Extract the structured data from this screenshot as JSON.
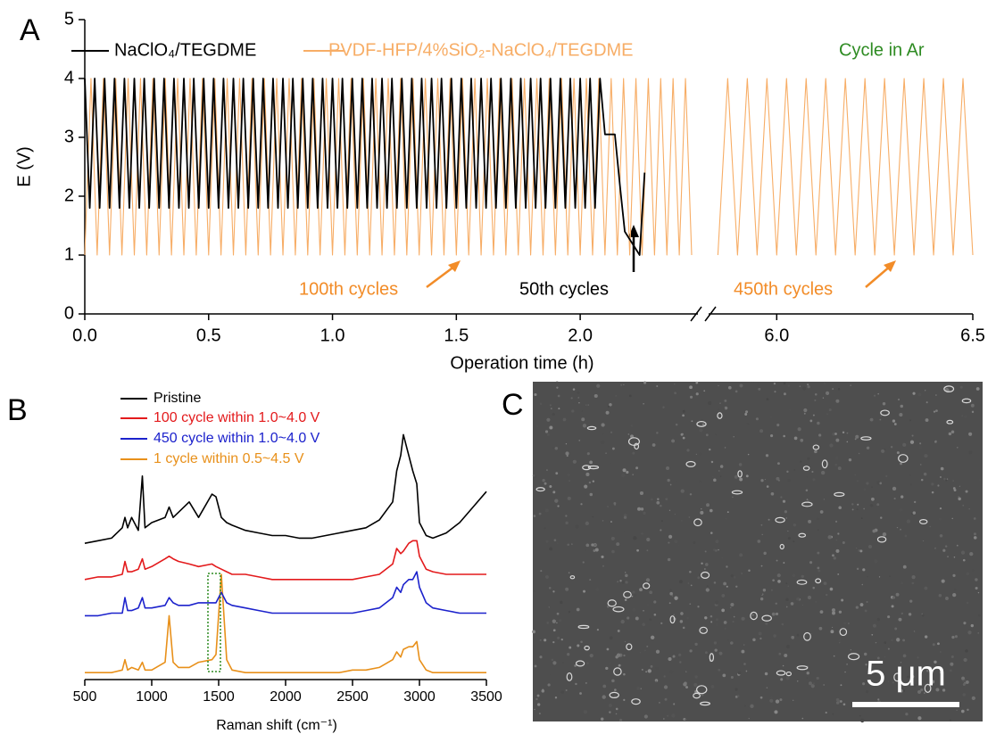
{
  "panels": {
    "labels": [
      "A",
      "B",
      "C"
    ]
  },
  "image": {
    "scale_bar": "5 μm"
  },
  "chart_data": [
    {
      "type": "line",
      "xlabel": "Operation time (h)",
      "ylabel": "E (V)",
      "xlim": [
        0,
        6.5
      ],
      "xbreak": [
        2.45,
        5.84
      ],
      "ylim": [
        0,
        5
      ],
      "xticks": [
        {
          "value": 0,
          "label": "0.0"
        },
        0.5,
        {
          "value": 1,
          "label": "1.0"
        },
        1.5,
        {
          "value": 2,
          "label": "2.0"
        },
        {
          "value": 6,
          "label": "6.0"
        },
        6.5
      ],
      "yticks": [
        0,
        1,
        2,
        3,
        4,
        5
      ],
      "annotations": [
        {
          "text": "Cycle in Ar",
          "color": "#2e8b22"
        },
        {
          "text": "100th cycles",
          "color": "#f28c28"
        },
        {
          "text": "50th cycles",
          "color": "#000000"
        },
        {
          "text": "450th cycles",
          "color": "#f28c28"
        }
      ],
      "series": [
        {
          "name": "NaClO₄/TEGDME",
          "color": "#000000",
          "x": [
            0,
            0.02,
            0.04,
            0.06,
            0.08,
            0.1,
            0.12,
            0.14,
            0.16,
            0.18,
            0.2,
            0.22,
            0.24,
            0.26,
            0.28,
            0.3,
            0.32,
            0.34,
            0.36,
            0.38,
            0.4,
            0.42,
            0.44,
            0.46,
            0.48,
            0.5,
            0.52,
            0.54,
            0.56,
            0.58,
            0.6,
            0.62,
            0.64,
            0.66,
            0.68,
            0.7,
            0.72,
            0.74,
            0.76,
            0.78,
            0.8,
            0.82,
            0.84,
            0.86,
            0.88,
            0.9,
            0.92,
            0.94,
            0.96,
            0.98,
            1,
            1.02,
            1.04,
            1.06,
            1.08,
            1.1,
            1.12,
            1.14,
            1.16,
            1.18,
            1.2,
            1.22,
            1.24,
            1.26,
            1.28,
            1.3,
            1.32,
            1.34,
            1.36,
            1.38,
            1.4,
            1.42,
            1.44,
            1.46,
            1.48,
            1.5,
            1.52,
            1.54,
            1.56,
            1.58,
            1.6,
            1.62,
            1.64,
            1.66,
            1.68,
            1.7,
            1.72,
            1.74,
            1.76,
            1.78,
            1.8,
            1.82,
            1.84,
            1.86,
            1.88,
            1.9,
            1.92,
            1.94,
            1.96,
            1.98,
            2,
            2.02,
            2.04,
            2.06,
            2.08,
            2.1,
            2.14,
            2.16,
            2.18,
            2.24,
            2.26
          ],
          "values": [
            4,
            1.8,
            4,
            1.8,
            4,
            1.8,
            4,
            1.8,
            4,
            1.8,
            4,
            1.8,
            4,
            1.8,
            4,
            1.8,
            4,
            1.8,
            4,
            1.8,
            4,
            1.8,
            4,
            1.8,
            4,
            1.8,
            4,
            1.8,
            4,
            1.8,
            4,
            1.8,
            4,
            1.8,
            4,
            1.8,
            4,
            1.8,
            4,
            1.8,
            4,
            1.8,
            4,
            1.8,
            4,
            1.8,
            4,
            1.8,
            4,
            1.8,
            4,
            1.8,
            4,
            1.8,
            4,
            1.8,
            4,
            1.8,
            4,
            1.8,
            4,
            1.8,
            4,
            1.8,
            4,
            1.8,
            4,
            1.8,
            4,
            1.8,
            4,
            1.8,
            4,
            1.8,
            4,
            1.8,
            4,
            1.8,
            4,
            1.8,
            4,
            1.8,
            4,
            1.8,
            4,
            1.8,
            4,
            1.8,
            4,
            1.8,
            4,
            1.8,
            4,
            1.8,
            4,
            1.8,
            4,
            1.8,
            4,
            1.8,
            4,
            1.8,
            4,
            1.8,
            4,
            3.05,
            3.05,
            2.2,
            1.4,
            1,
            2.4
          ]
        },
        {
          "name": "PVDF-HFP/4%SiO₂-NaClO₄/TEGDME",
          "color": "#f7ad66",
          "x": [
            0,
            0.025,
            0.05,
            0.075,
            0.1,
            0.125,
            0.15,
            0.175,
            0.2,
            0.225,
            0.25,
            0.275,
            0.3,
            0.325,
            0.35,
            0.375,
            0.4,
            0.425,
            0.45,
            0.475,
            0.5,
            0.525,
            0.55,
            0.575,
            0.6,
            0.625,
            0.65,
            0.675,
            0.7,
            0.725,
            0.75,
            0.775,
            0.8,
            0.825,
            0.85,
            0.875,
            0.9,
            0.925,
            0.95,
            0.975,
            1,
            1.025,
            1.05,
            1.075,
            1.1,
            1.125,
            1.15,
            1.175,
            1.2,
            1.225,
            1.25,
            1.275,
            1.3,
            1.325,
            1.35,
            1.375,
            1.4,
            1.425,
            1.45,
            1.475,
            1.5,
            1.525,
            1.55,
            1.575,
            1.6,
            1.625,
            1.65,
            1.675,
            1.7,
            1.725,
            1.75,
            1.775,
            1.8,
            1.825,
            1.85,
            1.875,
            1.9,
            1.925,
            1.95,
            1.975,
            2,
            2.025,
            2.05,
            2.075,
            2.1,
            2.125,
            2.15,
            2.175,
            2.2,
            2.225,
            2.25,
            2.275,
            2.3,
            2.325,
            2.35,
            2.375,
            2.4,
            2.425,
            2.45,
            null,
            5.85,
            5.875,
            5.9,
            5.925,
            5.95,
            5.975,
            6,
            6.025,
            6.05,
            6.075,
            6.1,
            6.125,
            6.15,
            6.175,
            6.2,
            6.225,
            6.25,
            6.275,
            6.3,
            6.325,
            6.35,
            6.375,
            6.4,
            6.425,
            6.45,
            6.475,
            6.5
          ],
          "values": [
            1,
            4,
            1,
            4,
            1,
            4,
            1,
            4,
            1,
            4,
            1,
            4,
            1,
            4,
            1,
            4,
            1,
            4,
            1,
            4,
            1,
            4,
            1,
            4,
            1,
            4,
            1,
            4,
            1,
            4,
            1,
            4,
            1,
            4,
            1,
            4,
            1,
            4,
            1,
            4,
            1,
            4,
            1,
            4,
            1,
            4,
            1,
            4,
            1,
            4,
            1,
            4,
            1,
            4,
            1,
            4,
            1,
            4,
            1,
            4,
            1,
            4,
            1,
            4,
            1,
            4,
            1,
            4,
            1,
            4,
            1,
            4,
            1,
            4,
            1,
            4,
            1,
            4,
            1,
            4,
            1,
            4,
            1,
            4,
            1,
            4,
            1,
            4,
            1,
            4,
            1,
            4,
            1,
            4,
            1,
            4,
            1,
            4,
            1,
            null,
            1,
            4,
            1,
            4,
            1,
            4,
            1,
            4,
            1,
            4,
            1,
            4,
            1,
            4,
            1,
            4,
            1,
            4,
            1,
            4,
            1,
            4,
            1,
            4,
            1,
            4,
            1
          ]
        }
      ]
    },
    {
      "type": "line",
      "xlabel": "Raman shift (cm⁻¹)",
      "xlim": [
        500,
        3500
      ],
      "ylim": [
        0,
        100
      ],
      "xticks": [
        500,
        1000,
        1500,
        2000,
        2500,
        3000,
        3500
      ],
      "x": [
        500,
        600,
        700,
        780,
        800,
        820,
        850,
        900,
        930,
        950,
        1000,
        1100,
        1130,
        1160,
        1200,
        1280,
        1350,
        1450,
        1480,
        1520,
        1560,
        1600,
        1700,
        1800,
        1900,
        2000,
        2100,
        2200,
        2300,
        2400,
        2500,
        2600,
        2700,
        2800,
        2830,
        2860,
        2880,
        2920,
        2950,
        2980,
        3000,
        3050,
        3100,
        3200,
        3300,
        3400,
        3500
      ],
      "series": [
        {
          "name": "Pristine",
          "color": "#000000",
          "values": [
            52,
            53,
            54,
            58,
            62,
            58,
            62,
            57,
            78,
            58,
            60,
            62,
            66,
            62,
            64,
            68,
            62,
            71,
            70,
            62,
            60,
            59,
            57,
            56,
            55,
            55,
            54,
            54,
            55,
            56,
            57,
            58,
            61,
            68,
            80,
            86,
            94,
            86,
            80,
            75,
            60,
            55,
            54,
            56,
            60,
            66,
            72
          ]
        },
        {
          "name": "100 cycle within 1.0~4.0 V",
          "color": "#e31a1c",
          "values": [
            38,
            39,
            39,
            40,
            45,
            41,
            41,
            42,
            46,
            42,
            43,
            46,
            47,
            46,
            45,
            44,
            43,
            44,
            43,
            42,
            41,
            40,
            40,
            39,
            38,
            38,
            38,
            38,
            38,
            38,
            38,
            39,
            40,
            44,
            50,
            48,
            49,
            52,
            53,
            53,
            47,
            42,
            41,
            40,
            40,
            40,
            40
          ]
        },
        {
          "name": "450 cycle within 1.0~4.0 V",
          "color": "#1c22cc",
          "values": [
            24,
            24,
            25,
            25,
            31,
            26,
            26,
            27,
            31,
            27,
            27,
            28,
            31,
            29,
            28,
            28,
            29,
            29,
            29,
            33,
            29,
            28,
            27,
            26,
            25,
            25,
            25,
            25,
            25,
            25,
            25,
            26,
            27,
            31,
            35,
            33,
            36,
            38,
            38,
            41,
            35,
            29,
            27,
            26,
            25,
            25,
            25
          ]
        },
        {
          "name": "1 cycle within 0.5~4.5 V",
          "color": "#e8901a",
          "values": [
            2,
            2,
            2,
            3,
            7,
            3,
            4,
            3,
            6,
            3,
            3,
            6,
            24,
            6,
            4,
            4,
            6,
            7,
            9,
            40,
            7,
            3,
            2,
            2,
            2,
            2,
            2,
            2,
            2,
            2,
            3,
            3,
            4,
            7,
            10,
            8,
            11,
            12,
            12,
            14,
            7,
            3,
            2,
            2,
            2,
            2,
            2
          ]
        }
      ]
    }
  ]
}
